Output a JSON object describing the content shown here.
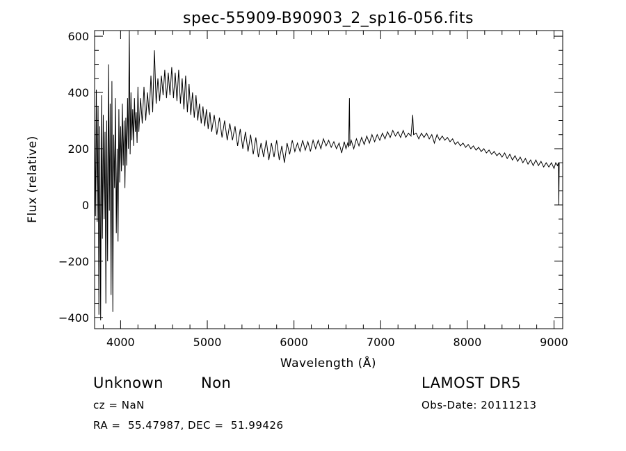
{
  "chart_data": {
    "type": "line",
    "title": "spec-55909-B90903_2_sp16-056.fits",
    "xlabel": "Wavelength (Å)",
    "ylabel": "Flux (relative)",
    "xlim": [
      3700,
      9100
    ],
    "ylim": [
      -440,
      620
    ],
    "xticks": [
      4000,
      5000,
      6000,
      7000,
      8000,
      9000
    ],
    "yticks": [
      -400,
      -200,
      0,
      200,
      400,
      600
    ],
    "grid": false,
    "series": [
      {
        "values": [
          [
            3700,
            300
          ],
          [
            3710,
            -40
          ],
          [
            3720,
            410
          ],
          [
            3730,
            -60
          ],
          [
            3740,
            350
          ],
          [
            3750,
            -390
          ],
          [
            3760,
            280
          ],
          [
            3770,
            -410
          ],
          [
            3780,
            390
          ],
          [
            3790,
            -120
          ],
          [
            3800,
            320
          ],
          [
            3810,
            -50
          ],
          [
            3820,
            260
          ],
          [
            3830,
            -350
          ],
          [
            3840,
            300
          ],
          [
            3850,
            -200
          ],
          [
            3860,
            500
          ],
          [
            3870,
            -20
          ],
          [
            3880,
            360
          ],
          [
            3890,
            -320
          ],
          [
            3900,
            440
          ],
          [
            3910,
            -380
          ],
          [
            3920,
            250
          ],
          [
            3930,
            60
          ],
          [
            3940,
            380
          ],
          [
            3950,
            -100
          ],
          [
            3960,
            200
          ],
          [
            3970,
            -130
          ],
          [
            3980,
            340
          ],
          [
            3990,
            80
          ],
          [
            4000,
            280
          ],
          [
            4010,
            120
          ],
          [
            4020,
            360
          ],
          [
            4030,
            140
          ],
          [
            4040,
            300
          ],
          [
            4050,
            60
          ],
          [
            4060,
            310
          ],
          [
            4070,
            140
          ],
          [
            4080,
            380
          ],
          [
            4090,
            200
          ],
          [
            4100,
            620
          ],
          [
            4110,
            180
          ],
          [
            4120,
            400
          ],
          [
            4130,
            230
          ],
          [
            4140,
            340
          ],
          [
            4150,
            210
          ],
          [
            4160,
            380
          ],
          [
            4170,
            260
          ],
          [
            4180,
            330
          ],
          [
            4190,
            220
          ],
          [
            4200,
            420
          ],
          [
            4210,
            260
          ],
          [
            4230,
            380
          ],
          [
            4250,
            290
          ],
          [
            4270,
            420
          ],
          [
            4290,
            300
          ],
          [
            4310,
            400
          ],
          [
            4330,
            320
          ],
          [
            4350,
            460
          ],
          [
            4370,
            330
          ],
          [
            4390,
            550
          ],
          [
            4410,
            360
          ],
          [
            4430,
            450
          ],
          [
            4450,
            370
          ],
          [
            4470,
            460
          ],
          [
            4490,
            390
          ],
          [
            4510,
            480
          ],
          [
            4530,
            380
          ],
          [
            4550,
            470
          ],
          [
            4570,
            390
          ],
          [
            4590,
            490
          ],
          [
            4610,
            380
          ],
          [
            4630,
            470
          ],
          [
            4650,
            370
          ],
          [
            4670,
            480
          ],
          [
            4690,
            360
          ],
          [
            4710,
            450
          ],
          [
            4730,
            340
          ],
          [
            4750,
            460
          ],
          [
            4770,
            330
          ],
          [
            4790,
            430
          ],
          [
            4810,
            320
          ],
          [
            4830,
            400
          ],
          [
            4850,
            310
          ],
          [
            4870,
            390
          ],
          [
            4890,
            300
          ],
          [
            4910,
            360
          ],
          [
            4930,
            290
          ],
          [
            4950,
            350
          ],
          [
            4970,
            280
          ],
          [
            4990,
            340
          ],
          [
            5010,
            270
          ],
          [
            5030,
            330
          ],
          [
            5050,
            260
          ],
          [
            5080,
            320
          ],
          [
            5110,
            250
          ],
          [
            5140,
            310
          ],
          [
            5170,
            240
          ],
          [
            5200,
            300
          ],
          [
            5230,
            230
          ],
          [
            5260,
            290
          ],
          [
            5290,
            230
          ],
          [
            5320,
            280
          ],
          [
            5350,
            210
          ],
          [
            5380,
            270
          ],
          [
            5410,
            200
          ],
          [
            5440,
            260
          ],
          [
            5470,
            190
          ],
          [
            5500,
            250
          ],
          [
            5530,
            180
          ],
          [
            5560,
            240
          ],
          [
            5590,
            170
          ],
          [
            5620,
            220
          ],
          [
            5650,
            170
          ],
          [
            5680,
            230
          ],
          [
            5710,
            160
          ],
          [
            5740,
            220
          ],
          [
            5770,
            170
          ],
          [
            5800,
            230
          ],
          [
            5830,
            160
          ],
          [
            5860,
            210
          ],
          [
            5890,
            150
          ],
          [
            5920,
            220
          ],
          [
            5950,
            180
          ],
          [
            5980,
            230
          ],
          [
            6010,
            190
          ],
          [
            6040,
            220
          ],
          [
            6070,
            190
          ],
          [
            6100,
            230
          ],
          [
            6130,
            195
          ],
          [
            6160,
            225
          ],
          [
            6190,
            190
          ],
          [
            6220,
            230
          ],
          [
            6250,
            200
          ],
          [
            6280,
            230
          ],
          [
            6310,
            200
          ],
          [
            6340,
            235
          ],
          [
            6370,
            210
          ],
          [
            6400,
            230
          ],
          [
            6430,
            205
          ],
          [
            6460,
            225
          ],
          [
            6490,
            200
          ],
          [
            6520,
            220
          ],
          [
            6550,
            185
          ],
          [
            6580,
            225
          ],
          [
            6600,
            200
          ],
          [
            6620,
            220
          ],
          [
            6630,
            205
          ],
          [
            6640,
            380
          ],
          [
            6645,
            210
          ],
          [
            6660,
            230
          ],
          [
            6690,
            200
          ],
          [
            6720,
            235
          ],
          [
            6750,
            210
          ],
          [
            6780,
            240
          ],
          [
            6810,
            215
          ],
          [
            6840,
            245
          ],
          [
            6870,
            220
          ],
          [
            6900,
            250
          ],
          [
            6930,
            225
          ],
          [
            6960,
            250
          ],
          [
            6990,
            230
          ],
          [
            7020,
            255
          ],
          [
            7050,
            235
          ],
          [
            7080,
            260
          ],
          [
            7110,
            240
          ],
          [
            7140,
            265
          ],
          [
            7170,
            245
          ],
          [
            7200,
            260
          ],
          [
            7230,
            240
          ],
          [
            7260,
            265
          ],
          [
            7290,
            240
          ],
          [
            7320,
            255
          ],
          [
            7350,
            245
          ],
          [
            7370,
            320
          ],
          [
            7380,
            250
          ],
          [
            7410,
            255
          ],
          [
            7440,
            235
          ],
          [
            7470,
            255
          ],
          [
            7500,
            240
          ],
          [
            7530,
            255
          ],
          [
            7560,
            235
          ],
          [
            7590,
            250
          ],
          [
            7620,
            220
          ],
          [
            7650,
            250
          ],
          [
            7680,
            230
          ],
          [
            7710,
            245
          ],
          [
            7740,
            230
          ],
          [
            7770,
            240
          ],
          [
            7800,
            225
          ],
          [
            7830,
            235
          ],
          [
            7860,
            215
          ],
          [
            7890,
            225
          ],
          [
            7920,
            210
          ],
          [
            7950,
            220
          ],
          [
            7980,
            205
          ],
          [
            8010,
            215
          ],
          [
            8040,
            200
          ],
          [
            8070,
            210
          ],
          [
            8100,
            195
          ],
          [
            8130,
            205
          ],
          [
            8160,
            190
          ],
          [
            8190,
            200
          ],
          [
            8220,
            185
          ],
          [
            8250,
            195
          ],
          [
            8280,
            180
          ],
          [
            8310,
            190
          ],
          [
            8340,
            175
          ],
          [
            8370,
            185
          ],
          [
            8400,
            170
          ],
          [
            8430,
            185
          ],
          [
            8460,
            165
          ],
          [
            8490,
            180
          ],
          [
            8520,
            160
          ],
          [
            8550,
            175
          ],
          [
            8580,
            155
          ],
          [
            8610,
            170
          ],
          [
            8640,
            150
          ],
          [
            8670,
            165
          ],
          [
            8700,
            145
          ],
          [
            8730,
            160
          ],
          [
            8760,
            140
          ],
          [
            8790,
            160
          ],
          [
            8820,
            140
          ],
          [
            8850,
            155
          ],
          [
            8880,
            135
          ],
          [
            8910,
            150
          ],
          [
            8940,
            135
          ],
          [
            8970,
            150
          ],
          [
            9000,
            130
          ],
          [
            9020,
            150
          ],
          [
            9040,
            140
          ],
          [
            9050,
            150
          ],
          [
            9055,
            0
          ],
          [
            9060,
            150
          ]
        ]
      }
    ]
  },
  "info": {
    "class_label": "Unknown",
    "subclass_label": "Non",
    "survey_label": "LAMOST DR5",
    "cz_text": "cz = NaN",
    "obs_date_text": "Obs-Date: 20111213",
    "coords_text": "RA =  55.47987, DEC =  51.99426"
  }
}
